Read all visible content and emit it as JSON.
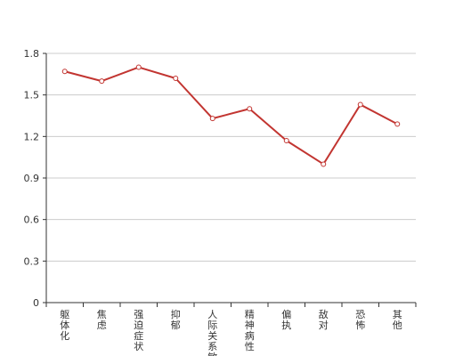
{
  "chart_data": {
    "type": "line",
    "categories": [
      "躯体化",
      "焦虑",
      "强迫症状",
      "抑郁",
      "人际关系敏感",
      "精神病性",
      "偏执",
      "敌对",
      "恐怖",
      "其他"
    ],
    "series": [
      {
        "values": [
          1.67,
          1.6,
          1.7,
          1.62,
          1.33,
          1.4,
          1.17,
          1.0,
          1.43,
          1.29
        ]
      }
    ],
    "ylim": [
      0,
      1.8
    ],
    "yticks": [
      0,
      0.3,
      0.6,
      0.9,
      1.2,
      1.5,
      1.8
    ],
    "ytick_labels": [
      "0",
      "0.3",
      "0.6",
      "0.9",
      "1.2",
      "1.5",
      "1.8"
    ],
    "grid": true,
    "title": "",
    "xlabel": "",
    "ylabel": "",
    "colors": {
      "line": "#c23531",
      "grid": "#cccccc",
      "axis": "#333333",
      "marker_fill": "#ffffff",
      "text": "#333333"
    }
  }
}
